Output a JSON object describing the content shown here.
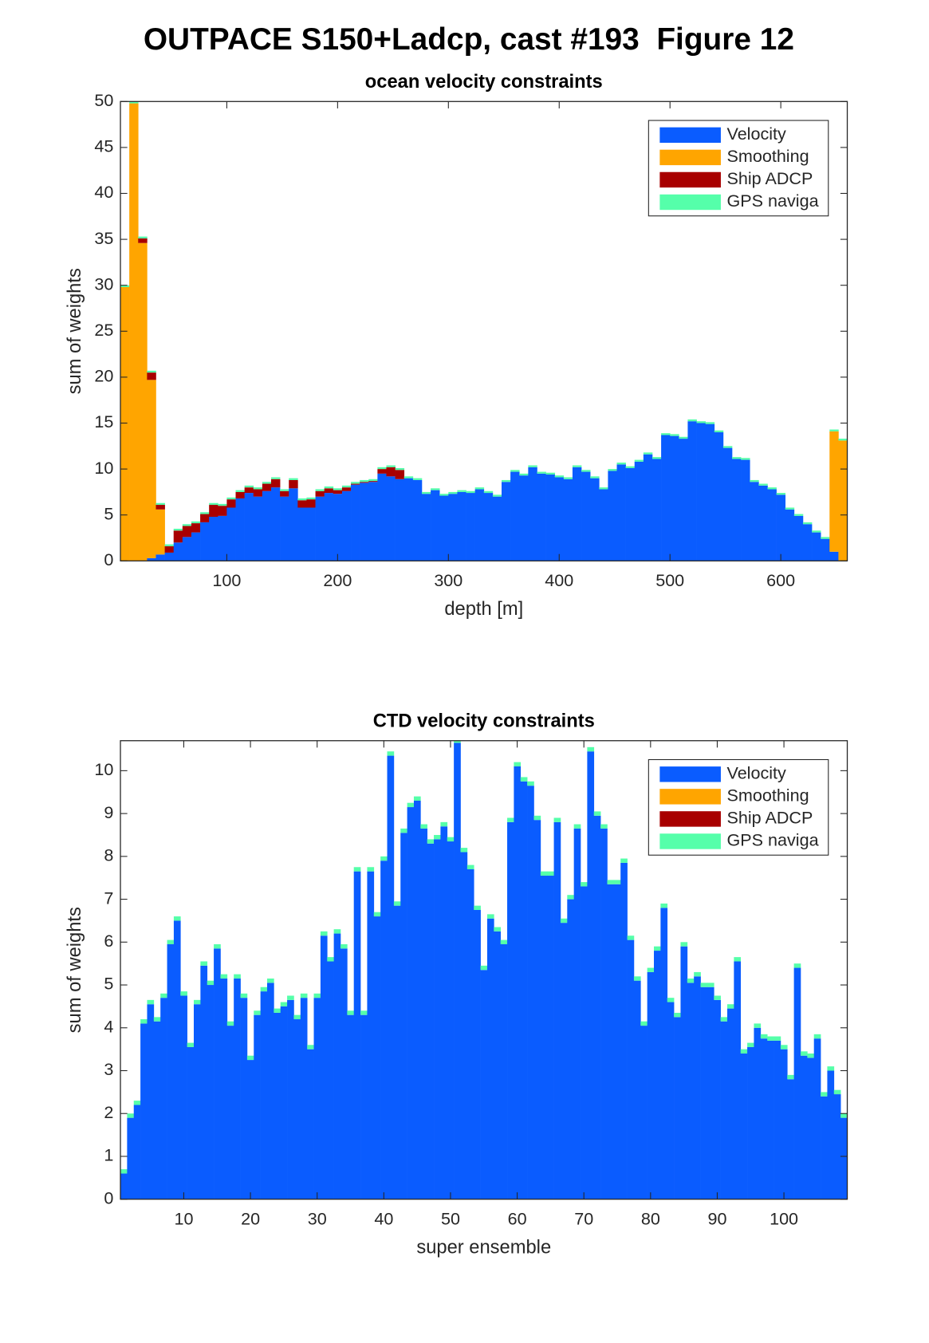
{
  "title": "OUTPACE S150+Ladcp, cast #193  Figure 12",
  "chart_data": [
    {
      "type": "bar",
      "stacked": true,
      "title": "ocean velocity constraints",
      "x_label": "depth [m]",
      "y_label": "sum of weights",
      "legend": "upper right",
      "x": [
        8,
        16,
        24,
        32,
        40,
        48,
        56,
        64,
        72,
        80,
        88,
        96,
        104,
        112,
        120,
        128,
        136,
        144,
        152,
        160,
        168,
        176,
        184,
        192,
        200,
        208,
        216,
        224,
        232,
        240,
        248,
        256,
        264,
        272,
        280,
        288,
        296,
        304,
        312,
        320,
        328,
        336,
        344,
        352,
        360,
        368,
        376,
        384,
        392,
        400,
        408,
        416,
        424,
        432,
        440,
        448,
        456,
        464,
        472,
        480,
        488,
        496,
        504,
        512,
        520,
        528,
        536,
        544,
        552,
        560,
        568,
        576,
        584,
        592,
        600,
        608,
        616,
        624,
        632,
        640,
        648,
        656
      ],
      "xlim": [
        4,
        660
      ],
      "ylim": [
        0,
        50
      ],
      "xticks": [
        100,
        200,
        300,
        400,
        500,
        600
      ],
      "yticks": [
        0,
        5,
        10,
        15,
        20,
        25,
        30,
        35,
        40,
        45,
        50
      ],
      "series": [
        {
          "name": "Velocity",
          "color": "#0a5cff",
          "values": [
            0,
            0,
            0,
            0.3,
            0.7,
            0.9,
            2,
            2.6,
            3.1,
            4.2,
            4.8,
            4.9,
            5.8,
            6.8,
            7.4,
            7,
            7.6,
            8,
            7,
            7.9,
            5.8,
            5.8,
            7,
            7.4,
            7.3,
            7.6,
            8.3,
            8.5,
            8.6,
            9.5,
            9.2,
            8.9,
            9,
            8.8,
            7.3,
            7.7,
            7.1,
            7.3,
            7.5,
            7.4,
            7.8,
            7.4,
            7,
            8.6,
            9.7,
            9.3,
            10.2,
            9.5,
            9.4,
            9.1,
            8.9,
            10.2,
            9.7,
            9,
            7.8,
            9.8,
            10.5,
            10.1,
            10.8,
            11.6,
            11.1,
            13.7,
            13.6,
            13.3,
            15.2,
            15,
            14.9,
            14,
            12.3,
            11.1,
            11,
            8.6,
            8.2,
            7.8,
            7.2,
            5.6,
            4.9,
            4,
            3.1,
            2.4,
            1,
            0
          ]
        },
        {
          "name": "Smoothing",
          "color": "#ffa500",
          "values": [
            29.8,
            49.8,
            34.6,
            19.4,
            4.9,
            0,
            0,
            0,
            0,
            0,
            0,
            0,
            0,
            0,
            0,
            0,
            0,
            0,
            0,
            0,
            0,
            0,
            0,
            0,
            0,
            0,
            0,
            0,
            0,
            0,
            0,
            0,
            0,
            0,
            0,
            0,
            0,
            0,
            0,
            0,
            0,
            0,
            0,
            0,
            0,
            0,
            0,
            0,
            0,
            0,
            0,
            0,
            0,
            0,
            0,
            0,
            0,
            0,
            0,
            0,
            0,
            0,
            0,
            0,
            0,
            0,
            0,
            0,
            0,
            0,
            0,
            0,
            0,
            0,
            0,
            0,
            0,
            0,
            0,
            0,
            13.1,
            13.1
          ]
        },
        {
          "name": "Ship ADCP",
          "color": "#a80000",
          "values": [
            0,
            0,
            0.5,
            0.8,
            0.5,
            0.7,
            1.3,
            1.2,
            1,
            0.9,
            1.3,
            1.1,
            0.9,
            0.7,
            0.6,
            0.8,
            0.8,
            0.9,
            0.6,
            0.9,
            0.8,
            0.9,
            0.6,
            0.5,
            0.4,
            0.4,
            0.1,
            0.1,
            0.1,
            0.5,
            1,
            1,
            0,
            0,
            0,
            0,
            0,
            0,
            0,
            0,
            0,
            0,
            0,
            0,
            0,
            0,
            0,
            0,
            0,
            0,
            0,
            0,
            0,
            0,
            0,
            0,
            0,
            0,
            0,
            0,
            0,
            0,
            0,
            0,
            0,
            0,
            0,
            0,
            0,
            0,
            0,
            0,
            0,
            0,
            0,
            0,
            0,
            0,
            0,
            0,
            0,
            0
          ]
        },
        {
          "name": "GPS naviga",
          "color": "#55ffaa",
          "values": [
            0.2,
            0.2,
            0.2,
            0.2,
            0.2,
            0.2,
            0.2,
            0.2,
            0.2,
            0.2,
            0.2,
            0.2,
            0.2,
            0.2,
            0.2,
            0.2,
            0.2,
            0.2,
            0.2,
            0.2,
            0.2,
            0.2,
            0.2,
            0.2,
            0.2,
            0.2,
            0.2,
            0.2,
            0.2,
            0.2,
            0.2,
            0.2,
            0.2,
            0.2,
            0.2,
            0.2,
            0.2,
            0.2,
            0.2,
            0.2,
            0.2,
            0.2,
            0.2,
            0.2,
            0.2,
            0.2,
            0.2,
            0.2,
            0.2,
            0.2,
            0.2,
            0.2,
            0.2,
            0.2,
            0.2,
            0.2,
            0.2,
            0.2,
            0.2,
            0.2,
            0.2,
            0.2,
            0.2,
            0.2,
            0.2,
            0.2,
            0.2,
            0.2,
            0.2,
            0.2,
            0.2,
            0.2,
            0.2,
            0.2,
            0.2,
            0.2,
            0.2,
            0.2,
            0.2,
            0.2,
            0.2,
            0.2
          ]
        }
      ]
    },
    {
      "type": "bar",
      "stacked": true,
      "title": "CTD velocity constraints",
      "x_label": "super ensemble",
      "y_label": "sum of weights",
      "legend": "upper right",
      "x": [
        1,
        2,
        3,
        4,
        5,
        6,
        7,
        8,
        9,
        10,
        11,
        12,
        13,
        14,
        15,
        16,
        17,
        18,
        19,
        20,
        21,
        22,
        23,
        24,
        25,
        26,
        27,
        28,
        29,
        30,
        31,
        32,
        33,
        34,
        35,
        36,
        37,
        38,
        39,
        40,
        41,
        42,
        43,
        44,
        45,
        46,
        47,
        48,
        49,
        50,
        51,
        52,
        53,
        54,
        55,
        56,
        57,
        58,
        59,
        60,
        61,
        62,
        63,
        64,
        65,
        66,
        67,
        68,
        69,
        70,
        71,
        72,
        73,
        74,
        75,
        76,
        77,
        78,
        79,
        80,
        81,
        82,
        83,
        84,
        85,
        86,
        87,
        88,
        89,
        90,
        91,
        92,
        93,
        94,
        95,
        96,
        97,
        98,
        99,
        100,
        101,
        102,
        103,
        104,
        105,
        106,
        107,
        108,
        109
      ],
      "xlim": [
        0.5,
        109.5
      ],
      "ylim": [
        0,
        10.7
      ],
      "xticks": [
        10,
        20,
        30,
        40,
        50,
        60,
        70,
        80,
        90,
        100
      ],
      "yticks": [
        0,
        1,
        2,
        3,
        4,
        5,
        6,
        7,
        8,
        9,
        10
      ],
      "series": [
        {
          "name": "Velocity",
          "color": "#0a5cff",
          "values": [
            0.6,
            1.9,
            2.2,
            4.1,
            4.55,
            4.15,
            4.7,
            5.95,
            6.5,
            4.75,
            3.55,
            4.55,
            5.45,
            5,
            5.85,
            5.15,
            4.05,
            5.15,
            4.7,
            3.25,
            4.3,
            4.85,
            5.05,
            4.35,
            4.5,
            4.65,
            4.2,
            4.7,
            3.5,
            4.7,
            6.15,
            5.55,
            6.2,
            5.85,
            4.3,
            7.65,
            4.3,
            7.65,
            6.6,
            7.9,
            10.35,
            6.85,
            8.55,
            9.15,
            9.3,
            8.65,
            8.3,
            8.4,
            8.7,
            8.35,
            10.65,
            8.1,
            7.7,
            6.75,
            5.35,
            6.55,
            6.25,
            5.95,
            8.8,
            10.1,
            9.75,
            9.65,
            8.85,
            7.55,
            7.55,
            8.8,
            6.45,
            7,
            8.65,
            7.3,
            10.45,
            8.95,
            8.65,
            7.35,
            7.35,
            7.85,
            6.05,
            5.1,
            4.05,
            5.3,
            5.8,
            6.8,
            4.6,
            4.25,
            5.9,
            5.05,
            5.2,
            4.95,
            4.95,
            4.65,
            4.15,
            4.45,
            5.55,
            3.4,
            3.55,
            4,
            3.75,
            3.7,
            3.7,
            3.5,
            2.8,
            5.4,
            3.35,
            3.3,
            3.75,
            2.4,
            3,
            2.45,
            1.9
          ]
        },
        {
          "name": "Smoothing",
          "color": "#ffa500",
          "values": [
            0,
            0,
            0,
            0,
            0,
            0,
            0,
            0,
            0,
            0,
            0,
            0,
            0,
            0,
            0,
            0,
            0,
            0,
            0,
            0,
            0,
            0,
            0,
            0,
            0,
            0,
            0,
            0,
            0,
            0,
            0,
            0,
            0,
            0,
            0,
            0,
            0,
            0,
            0,
            0,
            0,
            0,
            0,
            0,
            0,
            0,
            0,
            0,
            0,
            0,
            0,
            0,
            0,
            0,
            0,
            0,
            0,
            0,
            0,
            0,
            0,
            0,
            0,
            0,
            0,
            0,
            0,
            0,
            0,
            0,
            0,
            0,
            0,
            0,
            0,
            0,
            0,
            0,
            0,
            0,
            0,
            0,
            0,
            0,
            0,
            0,
            0,
            0,
            0,
            0,
            0,
            0,
            0,
            0,
            0,
            0,
            0,
            0,
            0,
            0,
            0,
            0,
            0,
            0,
            0,
            0,
            0,
            0,
            0
          ]
        },
        {
          "name": "Ship ADCP",
          "color": "#a80000",
          "values": [
            0,
            0,
            0,
            0,
            0,
            0,
            0,
            0,
            0,
            0,
            0,
            0,
            0,
            0,
            0,
            0,
            0,
            0,
            0,
            0,
            0,
            0,
            0,
            0,
            0,
            0,
            0,
            0,
            0,
            0,
            0,
            0,
            0,
            0,
            0,
            0,
            0,
            0,
            0,
            0,
            0,
            0,
            0,
            0,
            0,
            0,
            0,
            0,
            0,
            0,
            0,
            0,
            0,
            0,
            0,
            0,
            0,
            0,
            0,
            0,
            0,
            0,
            0,
            0,
            0,
            0,
            0,
            0,
            0,
            0,
            0,
            0,
            0,
            0,
            0,
            0,
            0,
            0,
            0,
            0,
            0,
            0,
            0,
            0,
            0,
            0,
            0,
            0,
            0,
            0,
            0,
            0,
            0,
            0,
            0,
            0,
            0,
            0,
            0,
            0,
            0,
            0,
            0,
            0,
            0,
            0,
            0,
            0,
            0
          ]
        },
        {
          "name": "GPS naviga",
          "color": "#55ffaa",
          "values": [
            0.1,
            0.1,
            0.1,
            0.1,
            0.1,
            0.1,
            0.1,
            0.1,
            0.1,
            0.1,
            0.1,
            0.1,
            0.1,
            0.1,
            0.1,
            0.1,
            0.1,
            0.1,
            0.1,
            0.1,
            0.1,
            0.1,
            0.1,
            0.1,
            0.1,
            0.1,
            0.1,
            0.1,
            0.1,
            0.1,
            0.1,
            0.1,
            0.1,
            0.1,
            0.1,
            0.1,
            0.1,
            0.1,
            0.1,
            0.1,
            0.1,
            0.1,
            0.1,
            0.1,
            0.1,
            0.1,
            0.1,
            0.1,
            0.1,
            0.1,
            0.1,
            0.1,
            0.1,
            0.1,
            0.1,
            0.1,
            0.1,
            0.1,
            0.1,
            0.1,
            0.1,
            0.1,
            0.1,
            0.1,
            0.1,
            0.1,
            0.1,
            0.1,
            0.1,
            0.1,
            0.1,
            0.1,
            0.1,
            0.1,
            0.1,
            0.1,
            0.1,
            0.1,
            0.1,
            0.1,
            0.1,
            0.1,
            0.1,
            0.1,
            0.1,
            0.1,
            0.1,
            0.1,
            0.1,
            0.1,
            0.1,
            0.1,
            0.1,
            0.1,
            0.1,
            0.1,
            0.1,
            0.1,
            0.1,
            0.1,
            0.1,
            0.1,
            0.1,
            0.1,
            0.1,
            0.1,
            0.1,
            0.1,
            0.1
          ]
        }
      ]
    }
  ]
}
